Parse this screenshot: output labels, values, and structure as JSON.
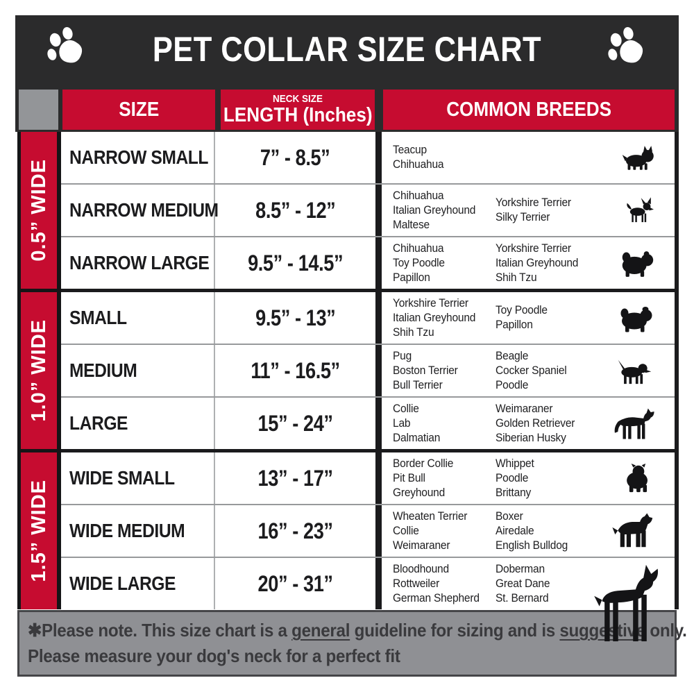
{
  "title": "PET COLLAR SIZE CHART",
  "title_icons": {
    "left": "paw-icon",
    "right": "paw-icon"
  },
  "table": {
    "headers": {
      "size": "SIZE",
      "neck_line1": "NECK SIZE",
      "neck_line2": "LENGTH (Inches)",
      "breeds": "COMMON BREEDS"
    },
    "groups": [
      {
        "width_label": "0.5” WIDE",
        "rows": [
          {
            "size": "NARROW SMALL",
            "neck": "7” - 8.5”",
            "breeds_col1": [
              "Teacup",
              "Chihuahua"
            ],
            "breeds_col2": [],
            "icon": "yorkshire-terrier-icon"
          },
          {
            "size": "NARROW MEDIUM",
            "neck": "8.5” - 12”",
            "breeds_col1": [
              "Chihuahua",
              "Italian Greyhound",
              "Maltese"
            ],
            "breeds_col2": [
              "Yorkshire Terrier",
              "Silky Terrier"
            ],
            "icon": "chihuahua-icon"
          },
          {
            "size": "NARROW LARGE",
            "neck": "9.5” - 14.5”",
            "breeds_col1": [
              "Chihuahua",
              "Toy Poodle",
              "Papillon"
            ],
            "breeds_col2": [
              "Yorkshire Terrier",
              "Italian Greyhound",
              "Shih Tzu"
            ],
            "icon": "shih-tzu-icon"
          }
        ]
      },
      {
        "width_label": "1.0” WIDE",
        "rows": [
          {
            "size": "SMALL",
            "neck": "9.5” - 13”",
            "breeds_col1": [
              "Yorkshire Terrier",
              "Italian Greyhound",
              "Shih Tzu"
            ],
            "breeds_col2": [
              "Toy Poodle",
              "Papillon"
            ],
            "icon": "pekingese-icon"
          },
          {
            "size": "MEDIUM",
            "neck": "11” - 16.5”",
            "breeds_col1": [
              "Pug",
              "Boston Terrier",
              "Bull Terrier"
            ],
            "breeds_col2": [
              "Beagle",
              "Cocker Spaniel",
              "Poodle"
            ],
            "icon": "beagle-icon"
          },
          {
            "size": "LARGE",
            "neck": "15” - 24”",
            "breeds_col1": [
              "Collie",
              "Lab",
              "Dalmatian"
            ],
            "breeds_col2": [
              "Weimaraner",
              "Golden Retriever",
              "Siberian Husky"
            ],
            "icon": "german-shepherd-icon"
          }
        ]
      },
      {
        "width_label": "1.5” WIDE",
        "rows": [
          {
            "size": "WIDE SMALL",
            "neck": "13” - 17”",
            "breeds_col1": [
              "Border Collie",
              "Pit Bull",
              "Greyhound"
            ],
            "breeds_col2": [
              "Whippet",
              "Poodle",
              "Brittany"
            ],
            "icon": "bulldog-icon"
          },
          {
            "size": "WIDE MEDIUM",
            "neck": "16” - 23”",
            "breeds_col1": [
              "Wheaten Terrier",
              "Collie",
              "Weimaraner"
            ],
            "breeds_col2": [
              "Boxer",
              "Airedale",
              "English Bulldog"
            ],
            "icon": "pit-bull-icon"
          },
          {
            "size": "WIDE LARGE",
            "neck": "20” - 31”",
            "breeds_col1": [
              "Bloodhound",
              "Rottweiler",
              "German Shepherd"
            ],
            "breeds_col2": [
              "Doberman",
              "Great Dane",
              "St. Bernard"
            ],
            "icon": "doberman-icon"
          }
        ]
      }
    ]
  },
  "footer": {
    "note_pre": "✱Please note. This size chart is a ",
    "note_u1": "general",
    "note_mid": " guideline for sizing and is ",
    "note_u2": "suggestive",
    "note_post": " only.",
    "line2": "Please measure your dog's neck for a perfect fit"
  },
  "colors": {
    "accent_red": "#C60C30",
    "header_dark": "#2B2B2C",
    "corner_gray": "#939598",
    "footer_gray": "#8F9094",
    "silhouette_black": "#141416"
  }
}
